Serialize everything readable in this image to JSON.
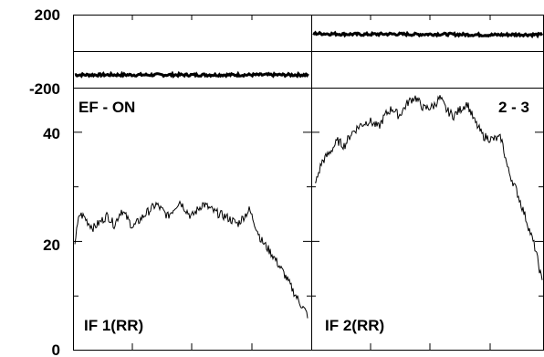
{
  "chart_data": [
    {
      "type": "line",
      "panel": "top-left",
      "ylim": [
        -200,
        200
      ],
      "ytick_labels": [
        "200",
        "-200"
      ],
      "series": [
        {
          "values": [
            -126,
            -126
          ]
        }
      ]
    },
    {
      "type": "line",
      "panel": "top-right",
      "ylim": [
        -200,
        200
      ],
      "series": [
        {
          "values": [
            98,
            95,
            93,
            95,
            93,
            94,
            92,
            90,
            92,
            91
          ]
        }
      ]
    },
    {
      "type": "line",
      "panel": "bottom-left",
      "label": "IF 1(RR)",
      "annotation": "EF - ON",
      "ylim": [
        0,
        48
      ],
      "ytick_labels": [
        "40",
        "20",
        "0"
      ],
      "x": [
        0,
        2,
        4,
        6,
        8,
        11,
        14,
        17,
        20,
        25,
        30,
        35,
        40,
        45,
        50,
        55,
        60,
        65,
        70,
        75,
        80,
        85,
        90,
        95,
        100
      ],
      "series": [
        {
          "values": [
            19.8,
            25.0,
            24.5,
            23.3,
            22.5,
            23.6,
            24.8,
            23.0,
            25.8,
            22.6,
            24.9,
            26.8,
            24.6,
            27.4,
            24.5,
            26.9,
            25.4,
            24.5,
            23.2,
            25.8,
            20.3,
            17.5,
            14.0,
            10.0,
            6.5
          ]
        }
      ]
    },
    {
      "type": "line",
      "panel": "bottom-right",
      "label": "IF 2(RR)",
      "annotation": "2 - 3",
      "ylim": [
        0,
        48
      ],
      "x": [
        0,
        3,
        6,
        10,
        13,
        16,
        20,
        24,
        28,
        31,
        34,
        37,
        41,
        44,
        48,
        52,
        55,
        58,
        61,
        64,
        67,
        70,
        74,
        78,
        82,
        85,
        89,
        93,
        97,
        100
      ],
      "series": [
        {
          "values": [
            30.2,
            34.5,
            36.0,
            38.4,
            37.5,
            39.8,
            41.3,
            42.1,
            40.9,
            43.2,
            44.4,
            43.0,
            45.5,
            46.5,
            44.3,
            44.7,
            46.3,
            44.0,
            43.0,
            44.2,
            45.3,
            42.2,
            39.3,
            38.7,
            38.9,
            33.1,
            29.0,
            24.0,
            18.6,
            12.5
          ]
        }
      ]
    }
  ]
}
